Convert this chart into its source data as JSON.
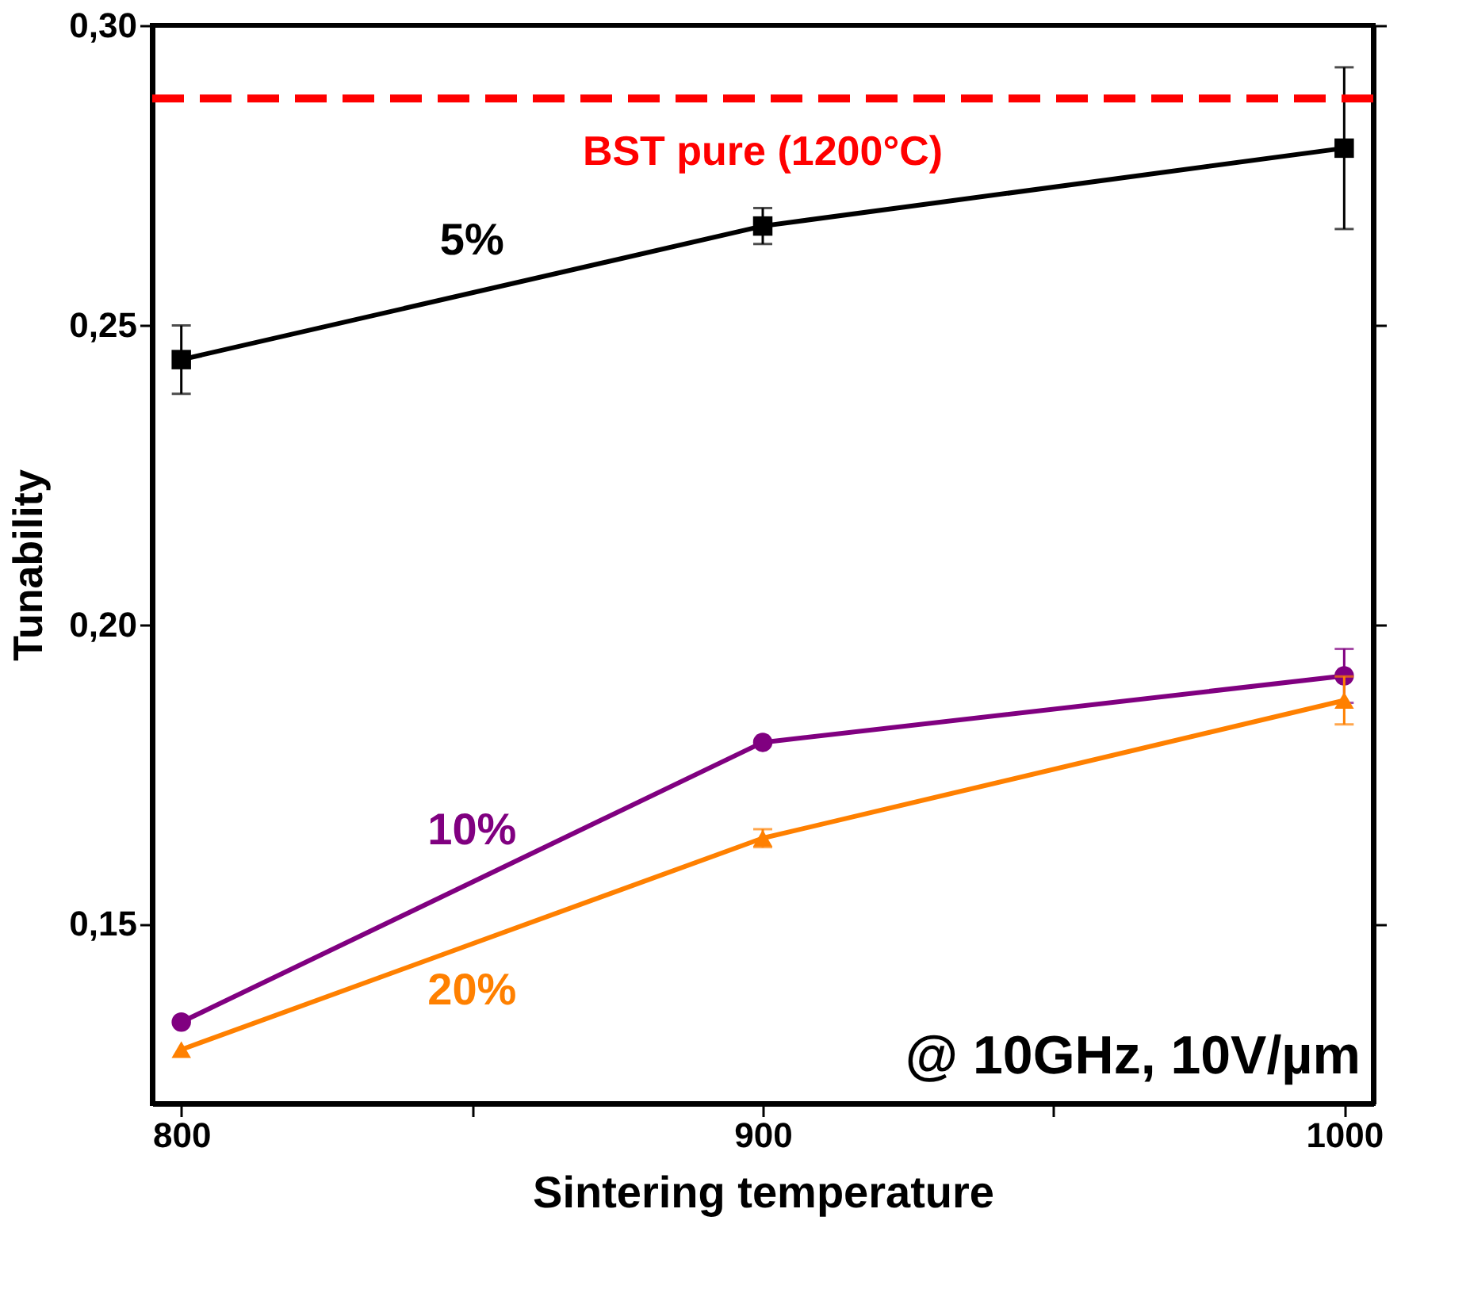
{
  "chart_data": {
    "type": "line",
    "xlabel": "Sintering temperature",
    "ylabel": "Tunability",
    "x": [
      800,
      900,
      1000
    ],
    "series": [
      {
        "name": "5%",
        "color": "#000000",
        "marker": "square",
        "values": [
          0.2442,
          0.2665,
          0.2795
        ],
        "errors": [
          0.0057,
          0.003,
          0.0135
        ]
      },
      {
        "name": "10%",
        "color": "#800080",
        "marker": "circle",
        "values": [
          0.1336,
          0.1803,
          0.1914
        ],
        "errors": [
          null,
          null,
          0.0045
        ]
      },
      {
        "name": "20%",
        "color": "#ff8000",
        "marker": "triangle",
        "values": [
          0.129,
          0.1643,
          0.1873
        ],
        "errors": [
          null,
          0.0015,
          0.004
        ]
      }
    ],
    "xlim": [
      795,
      1005
    ],
    "xticks": [
      800,
      {
        "value": 850,
        "label": null
      },
      900,
      {
        "value": 950,
        "label": null
      },
      1000
    ],
    "ylim": [
      0.12,
      0.3
    ],
    "yticks": [
      {
        "value": 0.15,
        "label": "0,15"
      },
      {
        "value": 0.2,
        "label": "0,20"
      },
      {
        "value": 0.25,
        "label": "0,25"
      },
      {
        "value": 0.3,
        "label": "0,30"
      }
    ],
    "ref_lines": [
      {
        "axis": "y",
        "value": 0.2878,
        "label": "BST pure (1200°C)",
        "color": "#ff0000",
        "line_style": "dashed"
      }
    ],
    "annotations": [
      "@ 10GHz, 10V/µm"
    ],
    "line_style": "solid",
    "grid": false
  }
}
